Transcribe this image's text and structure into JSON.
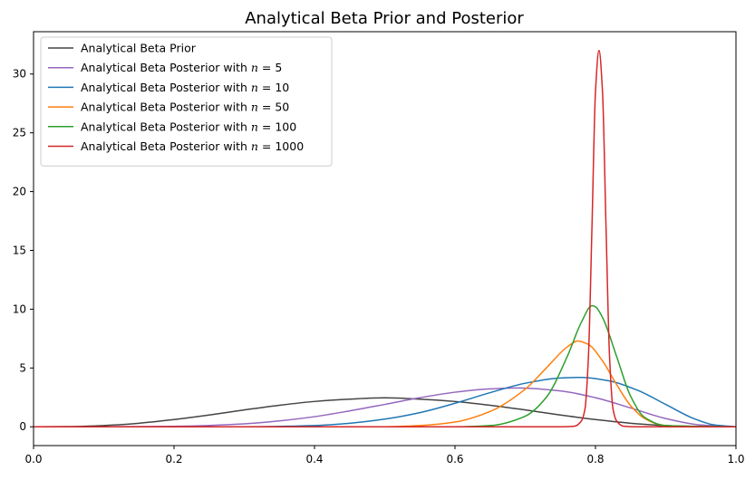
{
  "chart_data": {
    "type": "line",
    "title": "Analytical Beta Prior and Posterior",
    "xlabel": "",
    "ylabel": "",
    "xlim": [
      0.0,
      1.0
    ],
    "ylim": [
      -1.6,
      33.6
    ],
    "x_ticks": [
      0.0,
      0.2,
      0.4,
      0.6,
      0.8,
      1.0
    ],
    "x_tick_labels": [
      "0.0",
      "0.2",
      "0.4",
      "0.6",
      "0.8",
      "1.0"
    ],
    "y_ticks": [
      0,
      5,
      10,
      15,
      20,
      25,
      30
    ],
    "y_tick_labels": [
      "0",
      "5",
      "10",
      "15",
      "20",
      "25",
      "30"
    ],
    "grid": false,
    "legend": "top-left",
    "series": [
      {
        "name": "Analytical Beta Prior",
        "legend_prefix": "Analytical Beta Prior",
        "legend_n": "",
        "color": "#444444",
        "x": [
          0.0,
          0.05,
          0.1,
          0.15,
          0.2,
          0.25,
          0.3,
          0.35,
          0.4,
          0.45,
          0.5,
          0.55,
          0.6,
          0.65,
          0.7,
          0.75,
          0.8,
          0.85,
          0.9,
          0.95,
          1.0
        ],
        "values": [
          0.0,
          0.014,
          0.103,
          0.301,
          0.614,
          1.0,
          1.43,
          1.83,
          2.15,
          2.35,
          2.46,
          2.35,
          2.15,
          1.83,
          1.43,
          1.0,
          0.614,
          0.301,
          0.103,
          0.014,
          0.0
        ]
      },
      {
        "name": "Analytical Beta Posterior with n = 5",
        "legend_prefix": "Analytical Beta Posterior with ",
        "legend_n": "5",
        "color": "#9467bd",
        "x": [
          0.0,
          0.1,
          0.2,
          0.3,
          0.35,
          0.4,
          0.45,
          0.5,
          0.55,
          0.6,
          0.65,
          0.69,
          0.75,
          0.8,
          0.85,
          0.9,
          0.95,
          1.0
        ],
        "values": [
          0.0,
          0.0,
          0.04,
          0.25,
          0.5,
          0.86,
          1.35,
          1.9,
          2.47,
          2.94,
          3.22,
          3.3,
          3.05,
          2.47,
          1.6,
          0.7,
          0.15,
          0.0
        ]
      },
      {
        "name": "Analytical Beta Posterior with n = 10",
        "legend_prefix": "Analytical Beta Posterior with ",
        "legend_n": "10",
        "color": "#1f77b4",
        "x": [
          0.0,
          0.3,
          0.4,
          0.45,
          0.5,
          0.55,
          0.6,
          0.65,
          0.7,
          0.75,
          0.78,
          0.82,
          0.86,
          0.9,
          0.94,
          0.97,
          1.0
        ],
        "values": [
          0.0,
          0.0,
          0.1,
          0.3,
          0.65,
          1.2,
          2.0,
          2.9,
          3.7,
          4.15,
          4.2,
          3.9,
          3.1,
          1.9,
          0.7,
          0.15,
          0.0
        ]
      },
      {
        "name": "Analytical Beta Posterior with n = 50",
        "legend_prefix": "Analytical Beta Posterior with ",
        "legend_n": "50",
        "color": "#ff7f0e",
        "x": [
          0.0,
          0.5,
          0.55,
          0.6,
          0.65,
          0.7,
          0.73,
          0.76,
          0.775,
          0.79,
          0.81,
          0.83,
          0.85,
          0.87,
          0.89,
          0.92,
          1.0
        ],
        "values": [
          0.0,
          0.0,
          0.1,
          0.4,
          1.3,
          3.2,
          5.0,
          6.8,
          7.3,
          7.0,
          5.6,
          3.6,
          1.8,
          0.7,
          0.2,
          0.0,
          0.0
        ]
      },
      {
        "name": "Analytical Beta Posterior with n = 100",
        "legend_prefix": "Analytical Beta Posterior with ",
        "legend_n": "100",
        "color": "#2ca02c",
        "x": [
          0.0,
          0.6,
          0.65,
          0.7,
          0.73,
          0.76,
          0.78,
          0.795,
          0.8,
          0.81,
          0.83,
          0.85,
          0.87,
          0.9,
          1.0
        ],
        "values": [
          0.0,
          0.0,
          0.1,
          0.9,
          2.5,
          6.0,
          8.9,
          10.3,
          10.2,
          9.3,
          6.0,
          2.6,
          0.8,
          0.1,
          0.0
        ]
      },
      {
        "name": "Analytical Beta Posterior with n = 1000",
        "legend_prefix": "Analytical Beta Posterior with ",
        "legend_n": "1000",
        "color": "#d62728",
        "x": [
          0.0,
          0.75,
          0.77,
          0.78,
          0.785,
          0.79,
          0.795,
          0.8,
          0.805,
          0.81,
          0.815,
          0.82,
          0.825,
          0.83,
          0.84,
          0.86,
          1.0
        ],
        "values": [
          0.0,
          0.0,
          0.05,
          0.5,
          1.5,
          6.0,
          17.0,
          28.5,
          32.0,
          28.5,
          17.0,
          6.0,
          1.5,
          0.5,
          0.05,
          0.0,
          0.0
        ]
      }
    ]
  }
}
